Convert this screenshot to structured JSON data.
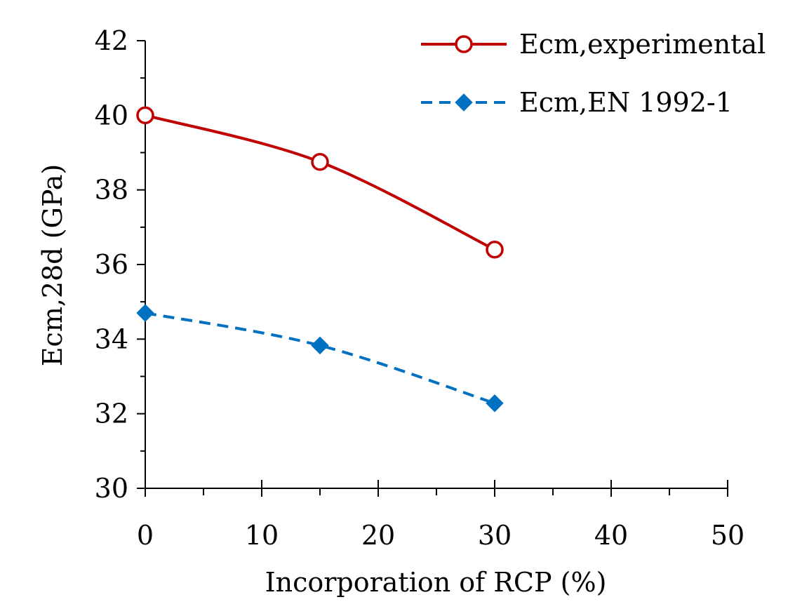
{
  "chart_data": {
    "type": "line",
    "title": "",
    "xlabel": "Incorporation of RCP (%)",
    "ylabel": "Ecm,28d (GPa)",
    "xlim": [
      0,
      50
    ],
    "ylim": [
      30,
      42
    ],
    "xticks": [
      0,
      10,
      20,
      30,
      40,
      50
    ],
    "yticks": [
      30,
      32,
      34,
      36,
      38,
      40,
      42
    ],
    "x_minor_step": 5,
    "y_minor_step": 1,
    "grid": false,
    "legend_position": "top-right",
    "series": [
      {
        "name": "Ecm,experimental",
        "x": [
          0,
          15,
          30
        ],
        "values": [
          40.0,
          38.75,
          36.4
        ],
        "color": "#C00000",
        "line_style": "solid",
        "marker": "circle-open"
      },
      {
        "name": "Ecm,EN 1992-1",
        "x": [
          0,
          15,
          30
        ],
        "values": [
          34.7,
          33.83,
          32.28
        ],
        "color": "#0070C0",
        "line_style": "dashed",
        "marker": "diamond-filled"
      }
    ]
  }
}
